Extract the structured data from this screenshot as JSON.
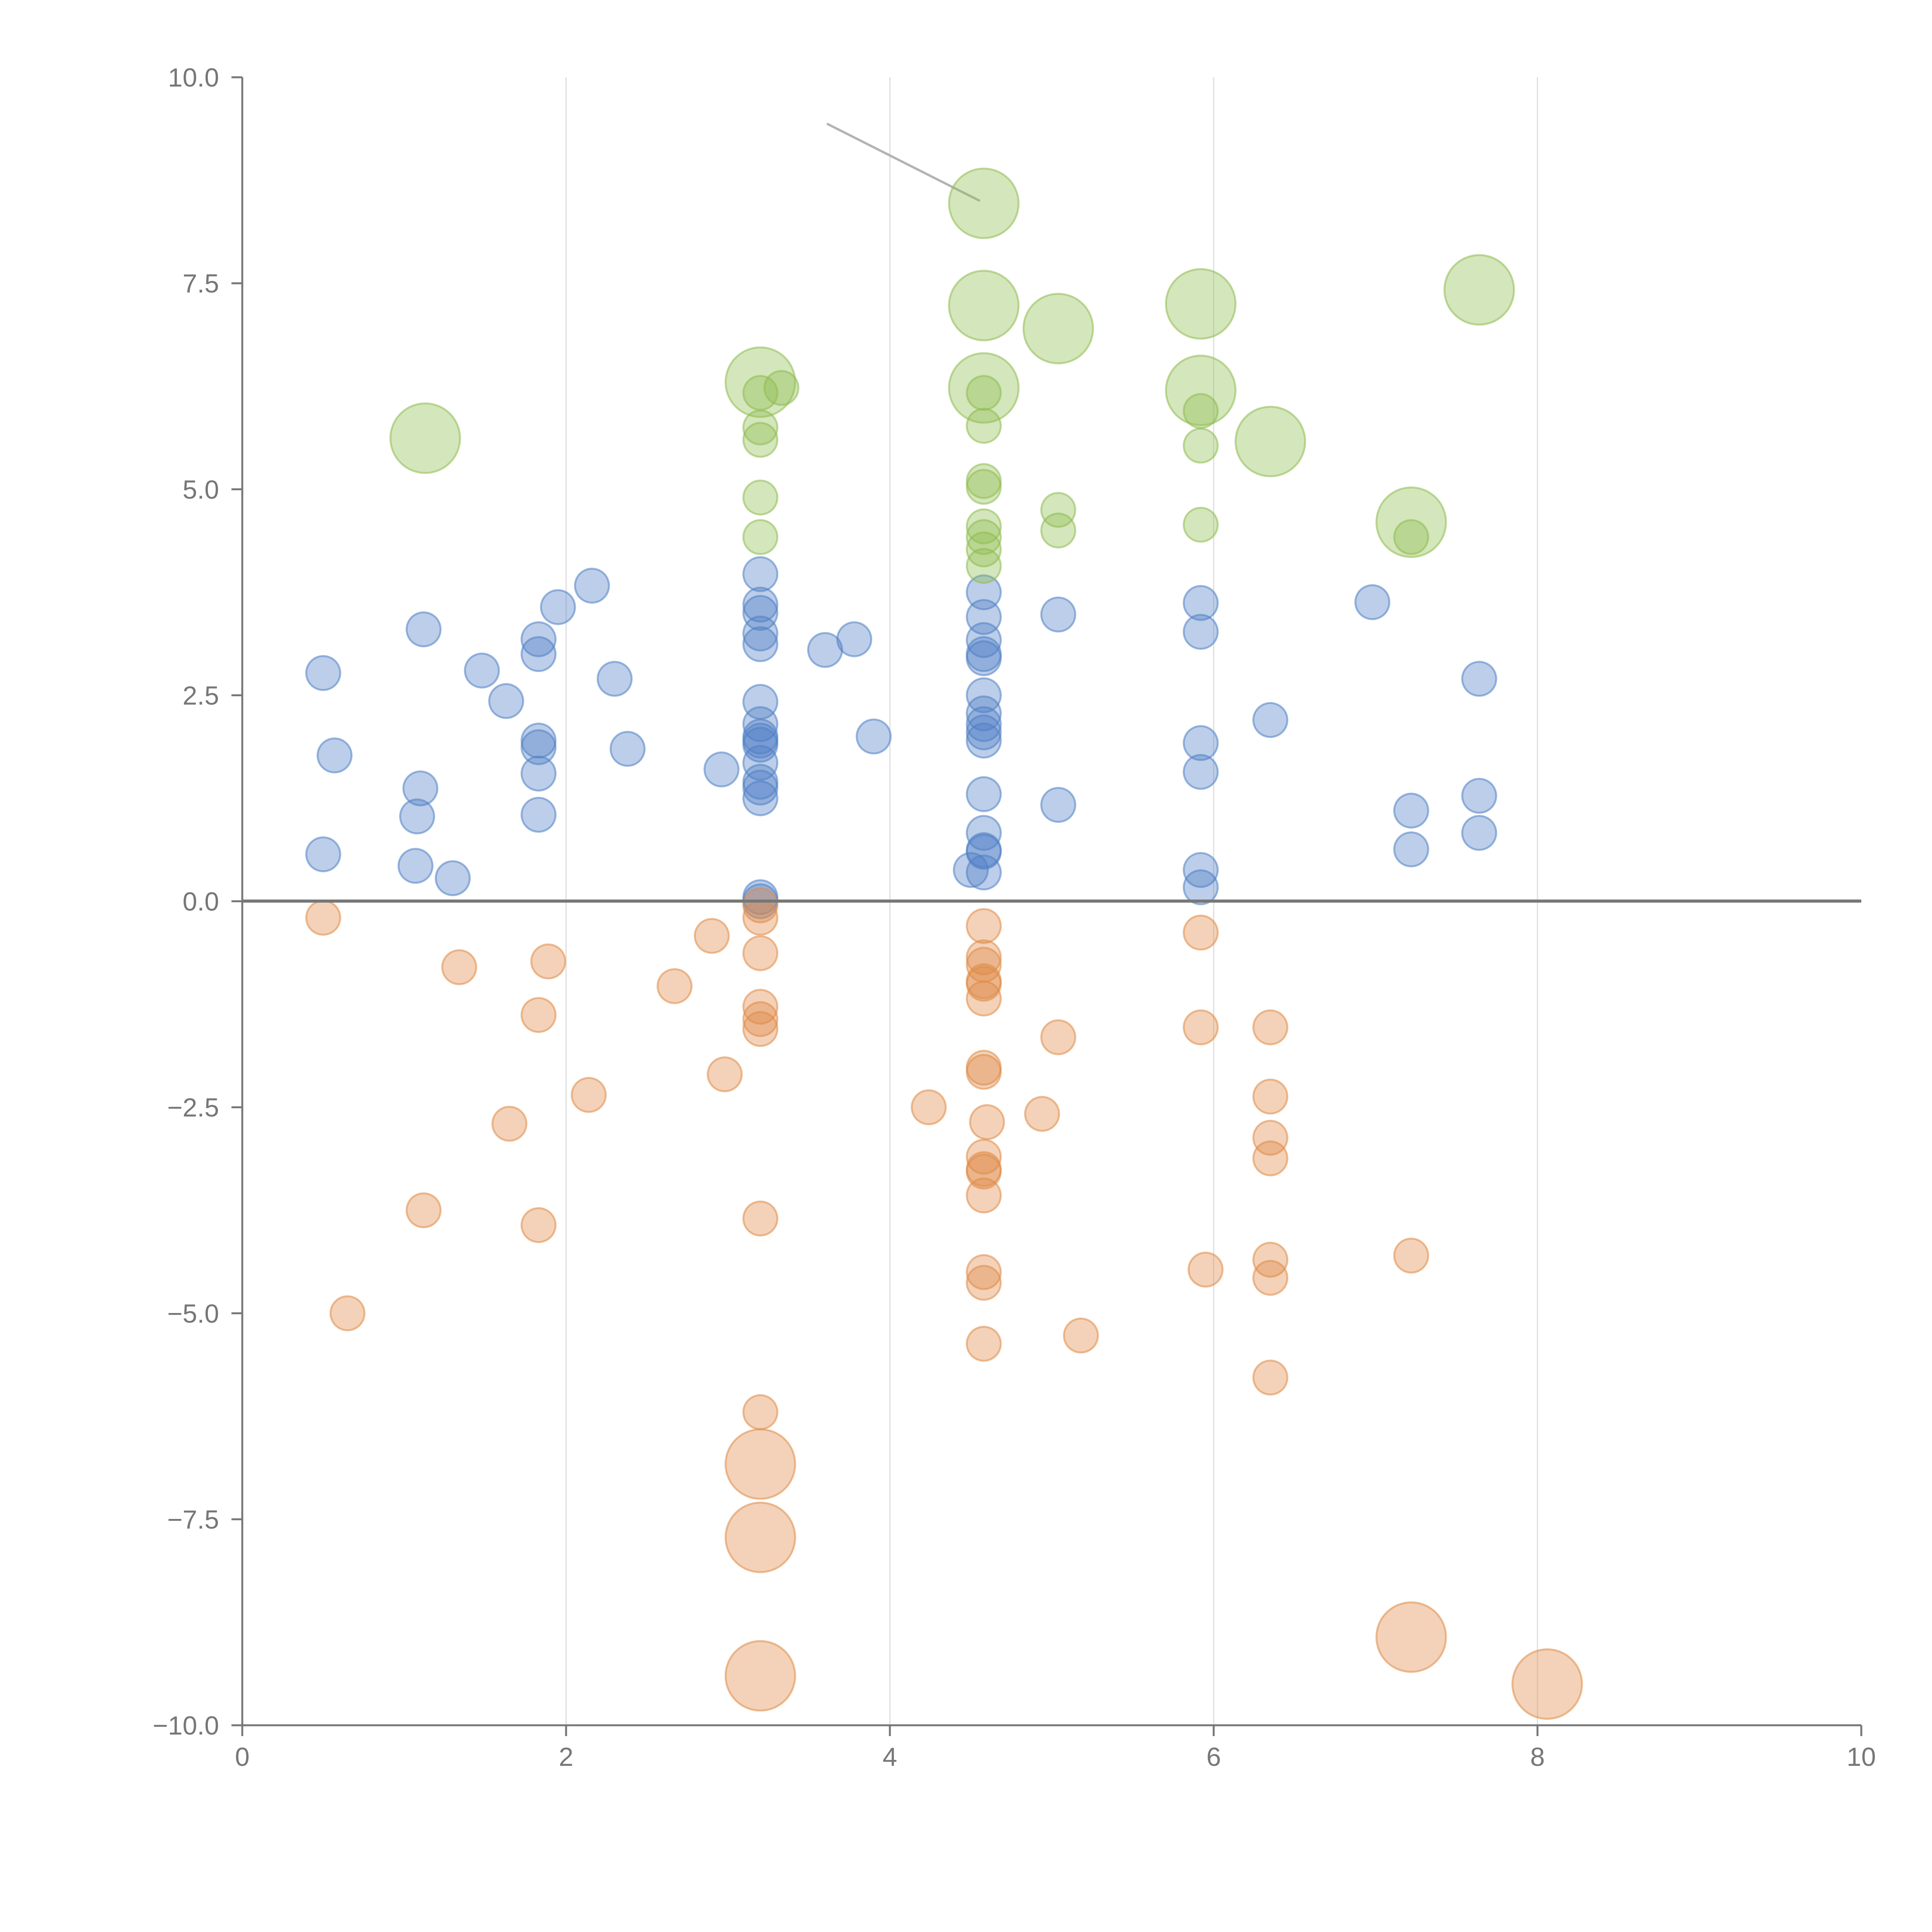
{
  "chart_data": {
    "type": "scatter",
    "title": "",
    "xlabel": "",
    "ylabel": "",
    "xlim": [
      0,
      10
    ],
    "ylim": [
      -10,
      10
    ],
    "grid": "vertical",
    "x_ticks": [
      "0",
      "2",
      "4",
      "6",
      "8",
      "10"
    ],
    "y_ticks": [
      "10.0",
      "7.5",
      "5.0",
      "2.5",
      "0.0",
      "−2.5",
      "−5.0",
      "−7.5",
      "−10.0"
    ],
    "colors": {
      "positive": "#4e7fc4",
      "negative": "#e08a46",
      "high": "#8ebc4e",
      "axis": "#777777",
      "zero_line": "#777777",
      "grid": "#dddddd"
    },
    "series": [
      {
        "name": "positive",
        "points": [
          [
            0.5,
            2.77,
            1
          ],
          [
            0.57,
            1.77,
            1
          ],
          [
            0.5,
            0.57,
            1
          ],
          [
            1.12,
            3.3,
            1
          ],
          [
            1.1,
            1.37,
            1
          ],
          [
            1.08,
            1.03,
            1
          ],
          [
            1.07,
            0.43,
            1
          ],
          [
            1.3,
            0.28,
            1
          ],
          [
            1.48,
            2.8,
            1
          ],
          [
            1.63,
            2.43,
            1
          ],
          [
            1.83,
            3.18,
            1
          ],
          [
            1.83,
            3.0,
            1
          ],
          [
            1.83,
            1.95,
            1
          ],
          [
            1.83,
            1.87,
            1
          ],
          [
            1.83,
            1.55,
            1
          ],
          [
            1.83,
            1.05,
            1
          ],
          [
            1.95,
            3.57,
            1
          ],
          [
            2.16,
            3.83,
            1
          ],
          [
            2.3,
            2.7,
            1
          ],
          [
            2.38,
            1.85,
            1
          ],
          [
            2.96,
            1.6,
            1
          ],
          [
            3.2,
            3.97,
            1
          ],
          [
            3.2,
            3.6,
            1
          ],
          [
            3.2,
            3.5,
            1
          ],
          [
            3.2,
            3.25,
            1
          ],
          [
            3.2,
            3.12,
            1
          ],
          [
            3.2,
            2.42,
            1
          ],
          [
            3.2,
            2.15,
            1
          ],
          [
            3.2,
            2.0,
            1
          ],
          [
            3.2,
            1.95,
            1
          ],
          [
            3.2,
            1.9,
            1
          ],
          [
            3.2,
            1.68,
            1
          ],
          [
            3.2,
            1.45,
            1
          ],
          [
            3.2,
            1.38,
            1
          ],
          [
            3.2,
            1.25,
            1
          ],
          [
            3.2,
            0.05,
            1
          ],
          [
            3.2,
            0.0,
            1
          ],
          [
            3.6,
            3.05,
            1
          ],
          [
            3.78,
            3.18,
            1
          ],
          [
            3.9,
            2.0,
            1
          ],
          [
            4.58,
            3.75,
            1
          ],
          [
            4.58,
            3.45,
            1
          ],
          [
            4.58,
            3.17,
            1
          ],
          [
            4.58,
            3.0,
            1
          ],
          [
            4.58,
            2.95,
            1
          ],
          [
            4.58,
            2.5,
            1
          ],
          [
            4.58,
            2.28,
            1
          ],
          [
            4.58,
            2.15,
            1
          ],
          [
            4.58,
            2.05,
            1
          ],
          [
            4.58,
            1.95,
            1
          ],
          [
            4.58,
            1.3,
            1
          ],
          [
            4.58,
            0.83,
            1
          ],
          [
            4.58,
            0.62,
            1
          ],
          [
            4.58,
            0.6,
            1
          ],
          [
            4.58,
            0.35,
            1
          ],
          [
            4.5,
            0.38,
            1
          ],
          [
            5.04,
            3.48,
            1
          ],
          [
            5.04,
            1.17,
            1
          ],
          [
            5.92,
            3.62,
            1
          ],
          [
            5.92,
            3.27,
            1
          ],
          [
            5.92,
            1.92,
            1
          ],
          [
            5.92,
            1.57,
            1
          ],
          [
            5.92,
            0.38,
            1
          ],
          [
            5.92,
            0.17,
            1
          ],
          [
            6.35,
            2.2,
            1
          ],
          [
            6.98,
            3.63,
            1
          ],
          [
            7.22,
            1.1,
            1
          ],
          [
            7.22,
            0.63,
            1
          ],
          [
            7.64,
            2.7,
            1
          ],
          [
            7.64,
            1.28,
            1
          ],
          [
            7.64,
            0.83,
            1
          ]
        ]
      },
      {
        "name": "negative",
        "points": [
          [
            0.5,
            -0.2,
            1
          ],
          [
            0.65,
            -5.0,
            1
          ],
          [
            1.12,
            -3.75,
            1
          ],
          [
            1.34,
            -0.8,
            1
          ],
          [
            1.65,
            -2.7,
            1
          ],
          [
            1.83,
            -1.38,
            1
          ],
          [
            1.83,
            -3.93,
            1
          ],
          [
            1.89,
            -0.73,
            1
          ],
          [
            2.14,
            -2.35,
            1
          ],
          [
            2.67,
            -1.03,
            1
          ],
          [
            2.9,
            -0.42,
            1
          ],
          [
            2.98,
            -2.1,
            1
          ],
          [
            3.2,
            -0.05,
            1
          ],
          [
            3.2,
            -0.2,
            1
          ],
          [
            3.2,
            -0.63,
            1
          ],
          [
            3.2,
            -1.28,
            1
          ],
          [
            3.2,
            -1.43,
            1
          ],
          [
            3.2,
            -1.55,
            1
          ],
          [
            3.2,
            -3.85,
            1
          ],
          [
            3.2,
            -6.2,
            1
          ],
          [
            3.2,
            -6.83,
            2
          ],
          [
            3.2,
            -7.72,
            2
          ],
          [
            3.2,
            -9.4,
            2
          ],
          [
            4.24,
            -2.5,
            1
          ],
          [
            4.58,
            -0.3,
            1
          ],
          [
            4.58,
            -0.68,
            1
          ],
          [
            4.58,
            -0.77,
            1
          ],
          [
            4.58,
            -0.97,
            1
          ],
          [
            4.58,
            -1.0,
            1
          ],
          [
            4.58,
            -1.18,
            1
          ],
          [
            4.58,
            -2.02,
            1
          ],
          [
            4.58,
            -2.07,
            1
          ],
          [
            4.6,
            -2.68,
            1
          ],
          [
            4.58,
            -3.1,
            1
          ],
          [
            4.58,
            -3.25,
            1
          ],
          [
            4.58,
            -3.28,
            1
          ],
          [
            4.58,
            -3.57,
            1
          ],
          [
            4.58,
            -4.5,
            1
          ],
          [
            4.58,
            -4.63,
            1
          ],
          [
            4.58,
            -5.37,
            1
          ],
          [
            4.94,
            -2.58,
            1
          ],
          [
            5.04,
            -1.65,
            1
          ],
          [
            5.18,
            -5.27,
            1
          ],
          [
            5.92,
            -0.38,
            1
          ],
          [
            5.92,
            -1.53,
            1
          ],
          [
            5.95,
            -4.47,
            1
          ],
          [
            6.35,
            -1.53,
            1
          ],
          [
            6.35,
            -2.37,
            1
          ],
          [
            6.35,
            -2.87,
            1
          ],
          [
            6.35,
            -3.12,
            1
          ],
          [
            6.35,
            -4.35,
            1
          ],
          [
            6.35,
            -4.57,
            1
          ],
          [
            6.35,
            -5.78,
            1
          ],
          [
            7.22,
            -4.3,
            1
          ],
          [
            7.22,
            -8.93,
            2
          ],
          [
            8.06,
            -9.5,
            2
          ]
        ]
      },
      {
        "name": "high",
        "points": [
          [
            1.13,
            5.62,
            2
          ],
          [
            3.2,
            6.3,
            2
          ],
          [
            3.2,
            6.17,
            1
          ],
          [
            3.33,
            6.23,
            1
          ],
          [
            3.2,
            5.75,
            1
          ],
          [
            3.2,
            5.6,
            1
          ],
          [
            3.2,
            4.9,
            1
          ],
          [
            3.2,
            4.42,
            1
          ],
          [
            4.58,
            8.47,
            2
          ],
          [
            4.58,
            7.23,
            2
          ],
          [
            4.58,
            6.23,
            2
          ],
          [
            4.58,
            6.17,
            1
          ],
          [
            4.58,
            5.77,
            1
          ],
          [
            4.58,
            5.1,
            1
          ],
          [
            4.58,
            5.03,
            1
          ],
          [
            4.58,
            4.55,
            1
          ],
          [
            4.58,
            4.42,
            1
          ],
          [
            4.58,
            4.27,
            1
          ],
          [
            4.58,
            4.07,
            1
          ],
          [
            5.04,
            6.95,
            2
          ],
          [
            5.04,
            4.75,
            1
          ],
          [
            5.04,
            4.5,
            1
          ],
          [
            5.92,
            7.25,
            2
          ],
          [
            5.92,
            6.2,
            2
          ],
          [
            5.92,
            5.95,
            1
          ],
          [
            5.92,
            5.53,
            1
          ],
          [
            5.92,
            4.57,
            1
          ],
          [
            6.35,
            5.58,
            2
          ],
          [
            7.22,
            4.6,
            2
          ],
          [
            7.22,
            4.42,
            1
          ],
          [
            7.64,
            7.42,
            2
          ]
        ]
      }
    ]
  }
}
